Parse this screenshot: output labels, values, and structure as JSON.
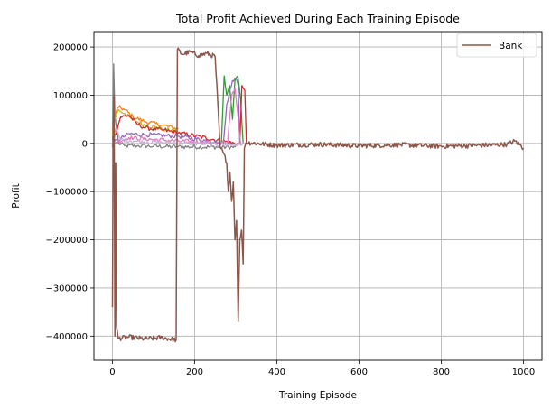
{
  "chart_data": {
    "type": "line",
    "title": "Total Profit Achieved During Each Training Episode",
    "xlabel": "Training Episode",
    "ylabel": "Profit",
    "xlim": [
      -45,
      1045
    ],
    "ylim": [
      -450000,
      232000
    ],
    "xticks": [
      0,
      200,
      400,
      600,
      800,
      1000
    ],
    "yticks": [
      200000,
      100000,
      0,
      -100000,
      -200000,
      -300000,
      -400000
    ],
    "xtick_labels": [
      "0",
      "200",
      "400",
      "600",
      "800",
      "1000"
    ],
    "ytick_labels": [
      "200000",
      "100000",
      "0",
      "−100000",
      "−200000",
      "−300000",
      "−400000"
    ],
    "grid": true,
    "legend_position": "top-right",
    "legend": [
      {
        "label": "Bank",
        "color": "#8c564b"
      }
    ],
    "series": [
      {
        "color": "#7f7f7f",
        "points": [
          [
            0,
            -8000
          ],
          [
            3,
            165000
          ],
          [
            6,
            60000
          ],
          [
            10,
            30000
          ],
          [
            15,
            0
          ],
          [
            30,
            -5000
          ],
          [
            60,
            -5000
          ],
          [
            100,
            -6000
          ],
          [
            160,
            -7000
          ],
          [
            300,
            -8000
          ]
        ]
      },
      {
        "color": "#ff7f0e",
        "points": [
          [
            0,
            20000
          ],
          [
            5,
            60000
          ],
          [
            15,
            75000
          ],
          [
            30,
            70000
          ],
          [
            50,
            55000
          ],
          [
            80,
            45000
          ],
          [
            120,
            38000
          ],
          [
            160,
            30000
          ]
        ]
      },
      {
        "color": "#bcbd22",
        "points": [
          [
            0,
            15000
          ],
          [
            5,
            50000
          ],
          [
            15,
            70000
          ],
          [
            30,
            62000
          ],
          [
            50,
            48000
          ],
          [
            80,
            38000
          ],
          [
            120,
            30000
          ],
          [
            160,
            25000
          ]
        ]
      },
      {
        "color": "#2ca02c",
        "points": [
          [
            265,
            0
          ],
          [
            272,
            140000
          ],
          [
            278,
            100000
          ],
          [
            285,
            120000
          ],
          [
            292,
            50000
          ],
          [
            298,
            130000
          ],
          [
            305,
            140000
          ],
          [
            312,
            90000
          ],
          [
            318,
            0
          ]
        ]
      },
      {
        "color": "#d62728",
        "points": [
          [
            0,
            0
          ],
          [
            20,
            55000
          ],
          [
            40,
            58000
          ],
          [
            60,
            40000
          ],
          [
            80,
            32000
          ],
          [
            120,
            28000
          ],
          [
            160,
            22000
          ],
          [
            310,
            -2000
          ],
          [
            315,
            120000
          ],
          [
            322,
            110000
          ],
          [
            326,
            0
          ]
        ]
      },
      {
        "color": "#9467bd",
        "points": [
          [
            0,
            0
          ],
          [
            40,
            20000
          ],
          [
            80,
            18000
          ],
          [
            160,
            15000
          ],
          [
            270,
            0
          ],
          [
            278,
            80000
          ],
          [
            285,
            110000
          ],
          [
            292,
            130000
          ],
          [
            300,
            135000
          ],
          [
            306,
            120000
          ],
          [
            310,
            -2000
          ]
        ]
      },
      {
        "color": "#e377c2",
        "points": [
          [
            0,
            0
          ],
          [
            40,
            12000
          ],
          [
            100,
            8000
          ],
          [
            160,
            5000
          ],
          [
            280,
            0
          ],
          [
            290,
            100000
          ],
          [
            298,
            115000
          ],
          [
            305,
            60000
          ],
          [
            312,
            -2000
          ]
        ]
      },
      {
        "color": "#c5b0d5",
        "points": [
          [
            0,
            0
          ],
          [
            8,
            30000
          ],
          [
            20,
            8000
          ],
          [
            60,
            4000
          ],
          [
            120,
            2000
          ],
          [
            300,
            -3000
          ],
          [
            320,
            0
          ]
        ]
      }
    ],
    "bank_series": {
      "name": "Bank",
      "color": "#8c564b",
      "points": [
        [
          0,
          -340000
        ],
        [
          2,
          30000
        ],
        [
          4,
          100000
        ],
        [
          6,
          -400000
        ],
        [
          8,
          -40000
        ],
        [
          10,
          -380000
        ],
        [
          14,
          -405000
        ],
        [
          40,
          -402000
        ],
        [
          80,
          -406000
        ],
        [
          120,
          -403000
        ],
        [
          155,
          -408000
        ],
        [
          158,
          195000
        ],
        [
          170,
          185000
        ],
        [
          190,
          190000
        ],
        [
          210,
          182000
        ],
        [
          230,
          187000
        ],
        [
          250,
          180000
        ],
        [
          262,
          -8000
        ],
        [
          270,
          -20000
        ],
        [
          278,
          -40000
        ],
        [
          282,
          -100000
        ],
        [
          286,
          -60000
        ],
        [
          290,
          -120000
        ],
        [
          294,
          -80000
        ],
        [
          298,
          -200000
        ],
        [
          302,
          -160000
        ],
        [
          306,
          -370000
        ],
        [
          310,
          -200000
        ],
        [
          314,
          -180000
        ],
        [
          318,
          -250000
        ],
        [
          321,
          -10000
        ],
        [
          325,
          2000
        ],
        [
          400,
          -4000
        ],
        [
          500,
          -2000
        ],
        [
          600,
          -5000
        ],
        [
          700,
          -3000
        ],
        [
          800,
          -6000
        ],
        [
          900,
          -4000
        ],
        [
          960,
          -2000
        ],
        [
          980,
          5000
        ],
        [
          1000,
          -10000
        ]
      ]
    }
  }
}
